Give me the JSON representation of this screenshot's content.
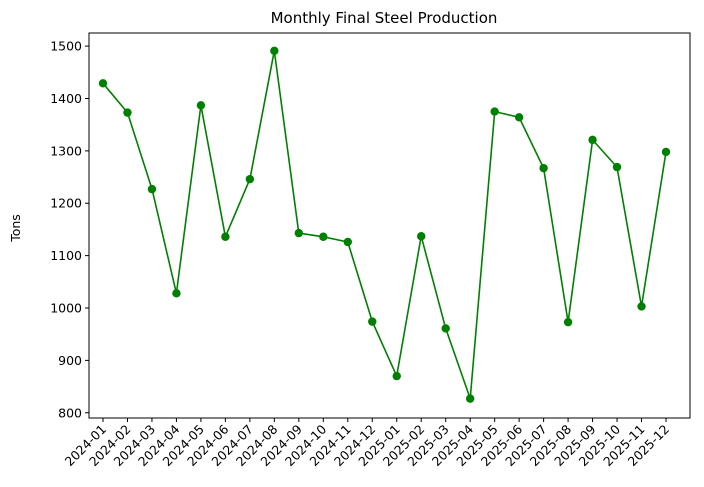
{
  "chart_data": {
    "type": "line",
    "title": "Monthly Final Steel Production",
    "xlabel": "",
    "ylabel": "Tons",
    "categories": [
      "2024-01",
      "2024-02",
      "2024-03",
      "2024-04",
      "2024-05",
      "2024-06",
      "2024-07",
      "2024-08",
      "2024-09",
      "2024-10",
      "2024-11",
      "2024-12",
      "2025-01",
      "2025-02",
      "2025-03",
      "2025-04",
      "2025-05",
      "2025-06",
      "2025-07",
      "2025-08",
      "2025-09",
      "2025-10",
      "2025-11",
      "2025-12"
    ],
    "series": [
      {
        "values": [
          1429,
          1373,
          1227,
          1028,
          1387,
          1136,
          1246,
          1491,
          1143,
          1136,
          1126,
          974,
          870,
          1137,
          961,
          827,
          1375,
          1364,
          1267,
          973,
          1321,
          1269,
          1003,
          1298
        ]
      }
    ],
    "yticks": [
      800,
      900,
      1000,
      1100,
      1200,
      1300,
      1400,
      1500
    ],
    "ylim": [
      790,
      1525
    ],
    "grid": false,
    "legend": "none",
    "colors": {
      "line": "#008000",
      "marker": "#008000"
    }
  }
}
